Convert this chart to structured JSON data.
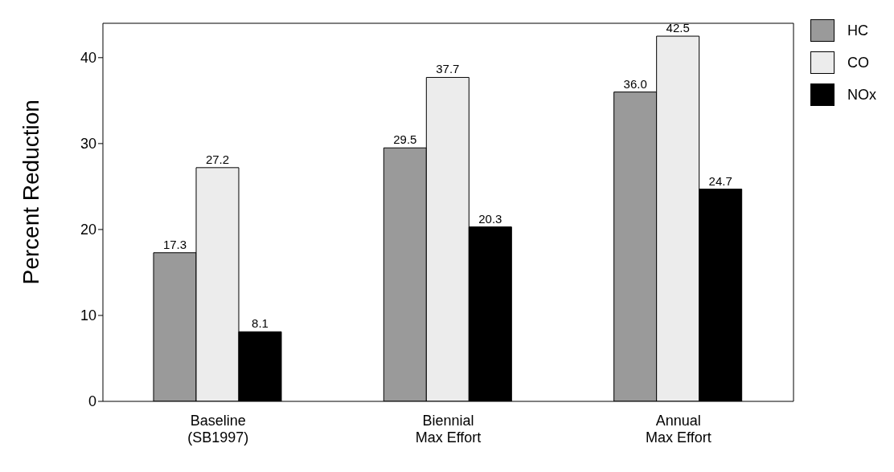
{
  "chart_data": {
    "type": "bar",
    "ylabel": "Percent Reduction",
    "categories": [
      "Baseline\n(SB1997)",
      "Biennial\nMax Effort",
      "Annual\nMax Effort"
    ],
    "series": [
      {
        "name": "HC",
        "color": "#9a9a9a",
        "values": [
          17.3,
          29.5,
          36.0
        ],
        "value_labels": [
          "17.3",
          "29.5",
          "36.0"
        ]
      },
      {
        "name": "CO",
        "color": "#ececec",
        "values": [
          27.2,
          37.7,
          42.5
        ],
        "value_labels": [
          "27.2",
          "37.7",
          "42.5"
        ]
      },
      {
        "name": "NOx",
        "color": "#000000",
        "values": [
          8.1,
          20.3,
          24.7
        ],
        "value_labels": [
          "8.1",
          "20.3",
          "24.7"
        ]
      }
    ],
    "ylim": [
      0,
      44
    ],
    "yticks": [
      0,
      10,
      20,
      30,
      40
    ],
    "legend": "top right"
  }
}
